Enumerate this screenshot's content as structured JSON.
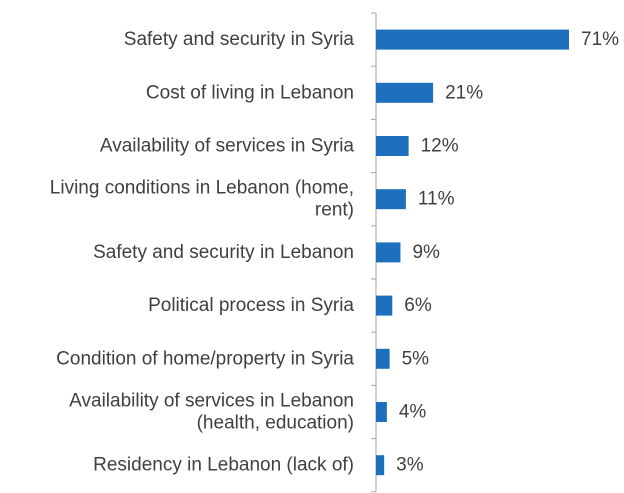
{
  "chart_data": {
    "type": "bar",
    "orientation": "horizontal",
    "title": "",
    "xlabel": "",
    "ylabel": "",
    "categories": [
      "Safety and security in Syria",
      "Cost of living in Lebanon",
      "Availability of services in Syria",
      "Living conditions in Lebanon (home, rent)",
      "Safety and security in Lebanon",
      "Political process in Syria",
      "Condition of home/property in Syria",
      "Availability of services in Lebanon (health, education)",
      "Residency in Lebanon (lack of)"
    ],
    "category_lines": [
      [
        "Safety and security in Syria"
      ],
      [
        "Cost of living in Lebanon"
      ],
      [
        "Availability of services in Syria"
      ],
      [
        "Living conditions in Lebanon (home,",
        "rent)"
      ],
      [
        "Safety and security in Lebanon"
      ],
      [
        "Political process in Syria"
      ],
      [
        "Condition of home/property in Syria"
      ],
      [
        "Availability of services in Lebanon",
        "(health, education)"
      ],
      [
        "Residency in Lebanon (lack of)"
      ]
    ],
    "values": [
      71,
      21,
      12,
      11,
      9,
      6,
      5,
      4,
      3
    ],
    "value_labels": [
      "71%",
      "21%",
      "12%",
      "11%",
      "9%",
      "6%",
      "5%",
      "4%",
      "3%"
    ],
    "xlim": [
      0,
      71
    ],
    "grid": false,
    "legend": "none",
    "bar_color": "#1f6fbf",
    "axis_color": "#a6a6a6",
    "text_color": "#404040"
  }
}
